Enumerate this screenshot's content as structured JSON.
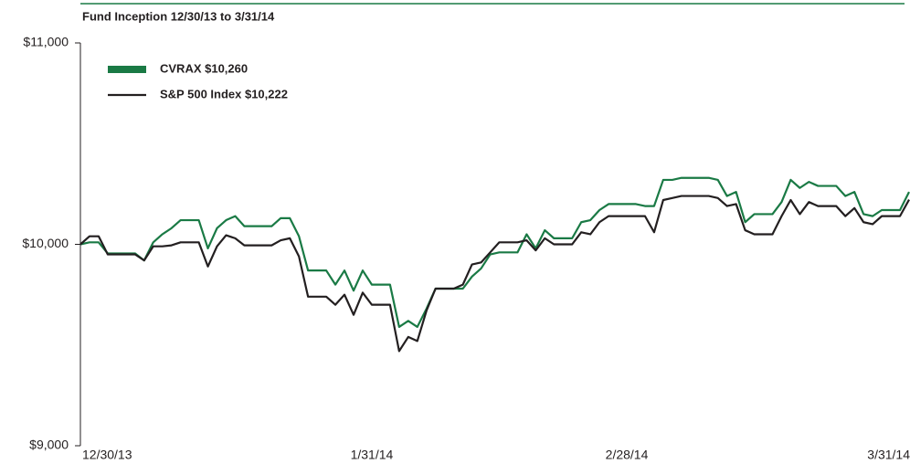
{
  "chart_data": {
    "type": "line",
    "title": "Fund Inception 12/30/13 to 3/31/14",
    "categories": [
      "12/30/13",
      null,
      null,
      null,
      null,
      null,
      null,
      null,
      null,
      null,
      null,
      null,
      null,
      null,
      null,
      null,
      null,
      null,
      null,
      null,
      null,
      null,
      null,
      null,
      null,
      null,
      null,
      null,
      null,
      null,
      null,
      null,
      "1/31/14",
      null,
      null,
      null,
      null,
      null,
      null,
      null,
      null,
      null,
      null,
      null,
      null,
      null,
      null,
      null,
      null,
      null,
      null,
      null,
      null,
      null,
      null,
      null,
      null,
      null,
      null,
      null,
      "2/28/14",
      null,
      null,
      null,
      null,
      null,
      null,
      null,
      null,
      null,
      null,
      null,
      null,
      null,
      null,
      null,
      null,
      null,
      null,
      null,
      null,
      null,
      null,
      null,
      null,
      null,
      null,
      null,
      null,
      null,
      null,
      "3/31/14"
    ],
    "series": [
      {
        "name": "CVRAX $10,260",
        "color": "#1a7a45",
        "values": [
          10000,
          10010,
          10010,
          9955,
          9955,
          9955,
          9955,
          9920,
          10010,
          10050,
          10080,
          10120,
          10120,
          10120,
          9980,
          10080,
          10120,
          10140,
          10090,
          10090,
          10090,
          10090,
          10130,
          10130,
          10040,
          9870,
          9870,
          9870,
          9800,
          9870,
          9770,
          9870,
          9800,
          9800,
          9800,
          9590,
          9620,
          9590,
          9680,
          9780,
          9780,
          9780,
          9780,
          9840,
          9880,
          9950,
          9960,
          9960,
          9960,
          10050,
          9980,
          10070,
          10030,
          10030,
          10030,
          10110,
          10120,
          10170,
          10200,
          10200,
          10200,
          10200,
          10190,
          10190,
          10320,
          10320,
          10330,
          10330,
          10330,
          10330,
          10320,
          10240,
          10260,
          10110,
          10150,
          10150,
          10150,
          10210,
          10320,
          10280,
          10310,
          10290,
          10290,
          10290,
          10240,
          10260,
          10150,
          10140,
          10170,
          10170,
          10170,
          10260
        ]
      },
      {
        "name": "S&P 500 Index $10,222",
        "color": "#231f20",
        "values": [
          10000,
          10040,
          10040,
          9950,
          9950,
          9950,
          9950,
          9920,
          9990,
          9990,
          9995,
          10010,
          10010,
          10010,
          9890,
          9990,
          10045,
          10030,
          9995,
          9995,
          9995,
          9995,
          10020,
          10030,
          9940,
          9740,
          9740,
          9740,
          9700,
          9750,
          9650,
          9760,
          9700,
          9700,
          9700,
          9470,
          9540,
          9520,
          9670,
          9780,
          9780,
          9780,
          9800,
          9900,
          9910,
          9960,
          10010,
          10010,
          10010,
          10020,
          9970,
          10030,
          10000,
          10000,
          10000,
          10060,
          10050,
          10110,
          10140,
          10140,
          10140,
          10140,
          10140,
          10060,
          10220,
          10230,
          10240,
          10240,
          10240,
          10240,
          10230,
          10190,
          10200,
          10070,
          10050,
          10050,
          10050,
          10140,
          10220,
          10150,
          10210,
          10190,
          10190,
          10190,
          10140,
          10180,
          10110,
          10100,
          10140,
          10140,
          10140,
          10222
        ]
      }
    ],
    "ylim": [
      9000,
      11000
    ],
    "yticks": [
      {
        "value": 9000,
        "label": "$9,000"
      },
      {
        "value": 10000,
        "label": "$10,000"
      },
      {
        "value": 11000,
        "label": "$11,000"
      }
    ],
    "grid": false
  }
}
